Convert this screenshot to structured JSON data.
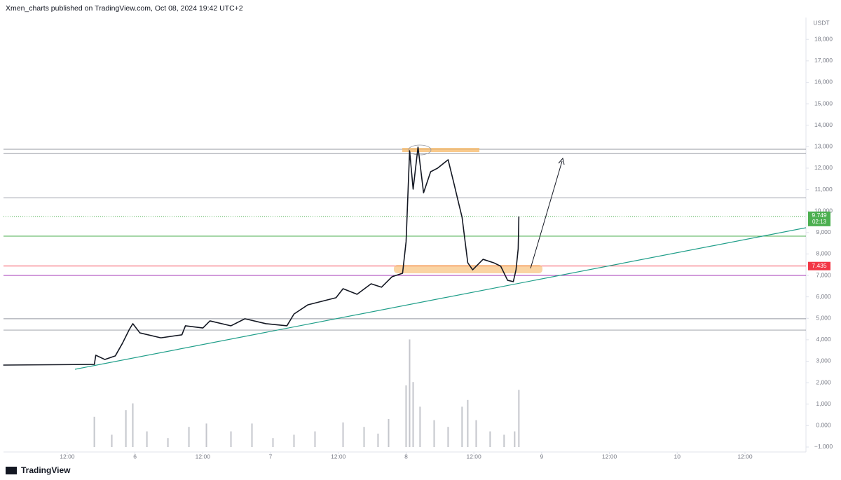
{
  "header": "Xmen_charts published on TradingView.com, Oct 08, 2024 19:42 UTC+2",
  "footer": "TradingView",
  "chart_data": {
    "type": "line",
    "currency": "USDT",
    "color": "#131722",
    "x": [
      5.028,
      5.7,
      5.711,
      5.778,
      5.855,
      5.907,
      5.959,
      5.984,
      6.036,
      6.191,
      6.346,
      6.372,
      6.501,
      6.553,
      6.708,
      6.811,
      6.966,
      7.121,
      7.173,
      7.276,
      7.483,
      7.535,
      7.638,
      7.742,
      7.819,
      7.897,
      7.974,
      8.0,
      8.026,
      8.052,
      8.088,
      8.129,
      8.181,
      8.233,
      8.31,
      8.351,
      8.388,
      8.413,
      8.455,
      8.491,
      8.568,
      8.646,
      8.698,
      8.749,
      8.791,
      8.811,
      8.827,
      8.832
    ],
    "values": [
      2820,
      2850,
      3280,
      3080,
      3250,
      3830,
      4490,
      4750,
      4320,
      4090,
      4230,
      4650,
      4550,
      4880,
      4650,
      4980,
      4750,
      4650,
      5200,
      5630,
      5960,
      6380,
      6120,
      6610,
      6450,
      6940,
      7100,
      8570,
      12810,
      11020,
      12980,
      10850,
      11830,
      12000,
      12390,
      11340,
      10360,
      9710,
      7590,
      7260,
      7750,
      7590,
      7430,
      6770,
      6710,
      7260,
      8240,
      9749
    ],
    "volume": {
      "color": "#c4c6cc",
      "vlim": [
        0,
        100
      ],
      "x": [
        5.7,
        5.829,
        5.933,
        5.984,
        6.088,
        6.243,
        6.398,
        6.527,
        6.708,
        6.863,
        7.018,
        7.173,
        7.328,
        7.535,
        7.69,
        7.793,
        7.871,
        8.0,
        8.026,
        8.052,
        8.103,
        8.207,
        8.31,
        8.413,
        8.455,
        8.517,
        8.62,
        8.723,
        8.801,
        8.832
      ],
      "values": [
        27,
        11,
        33,
        39,
        14,
        8,
        18,
        21,
        14,
        21,
        8,
        11,
        14,
        22,
        18,
        12,
        25,
        55,
        96,
        58,
        36,
        24,
        18,
        36,
        42,
        24,
        14,
        11,
        14,
        51
      ]
    },
    "levels": [
      {
        "value": 12880,
        "color": "#9598a1"
      },
      {
        "value": 12680,
        "color": "#9598a1"
      },
      {
        "value": 10620,
        "color": "#9598a1"
      },
      {
        "value": 8830,
        "color": "#4caf50"
      },
      {
        "value": 7435,
        "color": "#f23645",
        "label": "7.435"
      },
      {
        "value": 7000,
        "color": "#9c27b0"
      },
      {
        "value": 4980,
        "color": "#9598a1"
      },
      {
        "value": 4450,
        "color": "#9598a1"
      }
    ],
    "last_price": {
      "value": 9749,
      "label": "9.749",
      "countdown": "02:13",
      "color": "#4caf50"
    },
    "ylim": [
      -1230,
      19020
    ],
    "yticks": [
      {
        "value": 18000,
        "label": "18,000"
      },
      {
        "value": 17000,
        "label": "17,000"
      },
      {
        "value": 16000,
        "label": "16,000"
      },
      {
        "value": 15000,
        "label": "15,000"
      },
      {
        "value": 14000,
        "label": "14,000"
      },
      {
        "value": 13000,
        "label": "13,000"
      },
      {
        "value": 12000,
        "label": "12,000"
      },
      {
        "value": 11000,
        "label": "11,000"
      },
      {
        "value": 10000,
        "label": "10,000"
      },
      {
        "value": 9000,
        "label": "9,000"
      },
      {
        "value": 8000,
        "label": "8,000"
      },
      {
        "value": 7000,
        "label": "7,000"
      },
      {
        "value": 6000,
        "label": "6,000"
      },
      {
        "value": 5000,
        "label": "5,000"
      },
      {
        "value": 4000,
        "label": "4,000"
      },
      {
        "value": 3000,
        "label": "3,000"
      },
      {
        "value": 2000,
        "label": "2,000"
      },
      {
        "value": 1000,
        "label": "1,000"
      },
      {
        "value": 0,
        "label": "0.000"
      },
      {
        "value": -1000,
        "label": "−1.000"
      }
    ],
    "xlim": [
      5.03,
      10.95
    ],
    "xticks": [
      {
        "value": 5.5,
        "label": "12:00"
      },
      6,
      {
        "value": 6.5,
        "label": "12:00"
      },
      7,
      {
        "value": 7.5,
        "label": "12:00"
      },
      8,
      {
        "value": 8.5,
        "label": "12:00"
      },
      9,
      {
        "value": 9.5,
        "label": "12:00"
      },
      10,
      {
        "value": 10.5,
        "label": "12:00"
      }
    ]
  }
}
